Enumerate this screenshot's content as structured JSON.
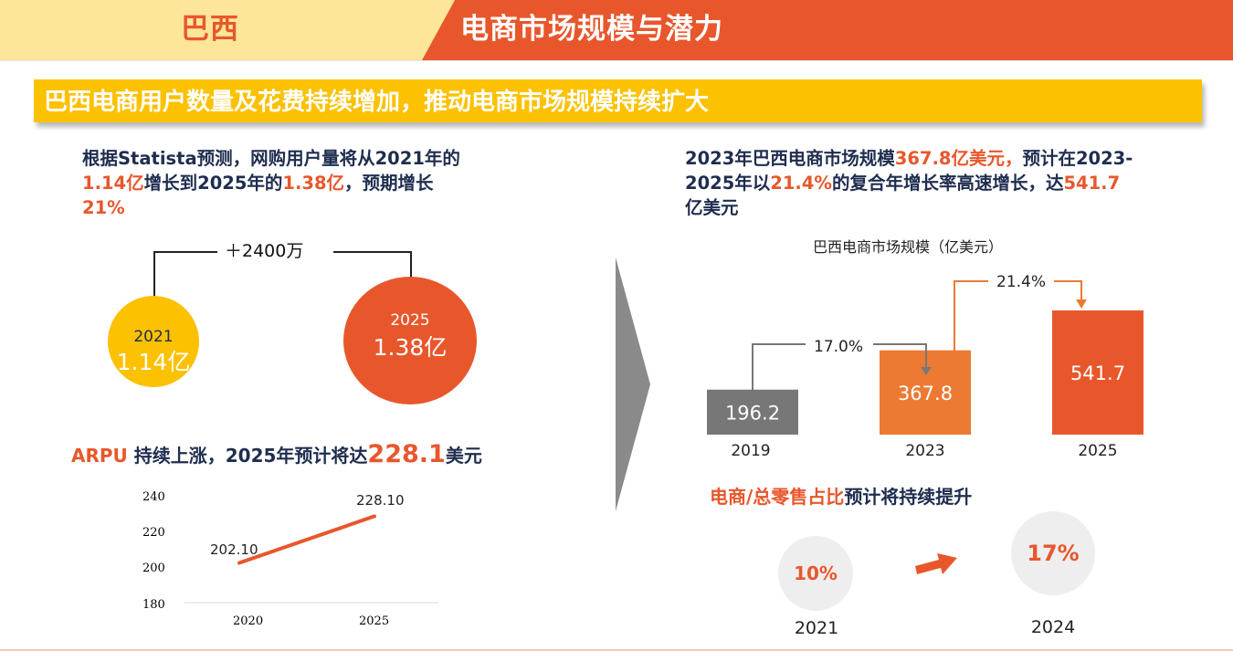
{
  "header": {
    "country": "巴西",
    "title": "电商市场规模与潜力"
  },
  "banner": "巴西电商用户数量及花费持续增加，推动电商市场规模持续扩大",
  "left": {
    "para": {
      "line1": "根据Statista预测，网购用户量将从2021年的",
      "l2_hl1": "1.14亿",
      "l2_mid": "增长到2025年的",
      "l2_hl2": "1.38亿",
      "l2_end": "，预期增长",
      "l3_hl": "21%"
    },
    "increase_label": "＋2400万",
    "circle_2021": {
      "year": "2021",
      "value": "1.14亿"
    },
    "circle_2025": {
      "year": "2025",
      "value": "1.38亿"
    },
    "arpu": {
      "lead": "ARPU",
      "mid": " 持续上涨，2025年预计将达",
      "value": "228.1",
      "unit": "美元"
    },
    "arpu_chart": {
      "y_ticks": [
        "240",
        "220",
        "200",
        "180"
      ],
      "x_ticks": [
        "2020",
        "2025"
      ],
      "labels": [
        "202.10",
        "228.10"
      ]
    }
  },
  "right": {
    "para": {
      "p1": "2023年巴西电商市场规模",
      "hl1": "367.8亿美元，",
      "p2": "预计在2023-",
      "p3": "2025年以",
      "hl2": "21.4%",
      "p4": "的复合年增长率高速增长，达",
      "hl3": "541.7",
      "p5": "亿美元"
    },
    "market_chart_title": "巴西电商市场规模（亿美元）",
    "growth_labels": [
      "17.0%",
      "21.4%"
    ],
    "bar_labels": [
      "196.2",
      "367.8",
      "541.7"
    ],
    "retail": {
      "title_hl": "电商/总零售占比",
      "title_rest": "预计将持续提升",
      "pct_2021": "10%",
      "year_2021": "2021",
      "pct_2024": "17%",
      "year_2024": "2024"
    }
  },
  "colors": {
    "accent": "#e8572c",
    "yellow": "#fcc100",
    "pale_yellow": "#fde59a",
    "navy": "#1f2d4f",
    "gray_bar": "#777777",
    "orange_bar": "#ec7a33"
  },
  "chart_data": [
    {
      "type": "line",
      "title": "",
      "x": [
        "2020",
        "2025"
      ],
      "series": [
        {
          "values": [
            202.1,
            228.1
          ]
        }
      ],
      "ylim": [
        180,
        240
      ],
      "y_ticks": [
        180,
        200,
        220,
        240
      ],
      "grid": false
    },
    {
      "type": "bar",
      "title": "巴西电商市场规模（亿美元）",
      "categories": [
        "2019",
        "2023",
        "2025"
      ],
      "values": [
        196.2,
        367.8,
        541.7
      ],
      "annotations": [
        {
          "from": "2019",
          "to": "2023",
          "label": "17.0%"
        },
        {
          "from": "2023",
          "to": "2025",
          "label": "21.4%"
        }
      ],
      "grid": false
    }
  ]
}
